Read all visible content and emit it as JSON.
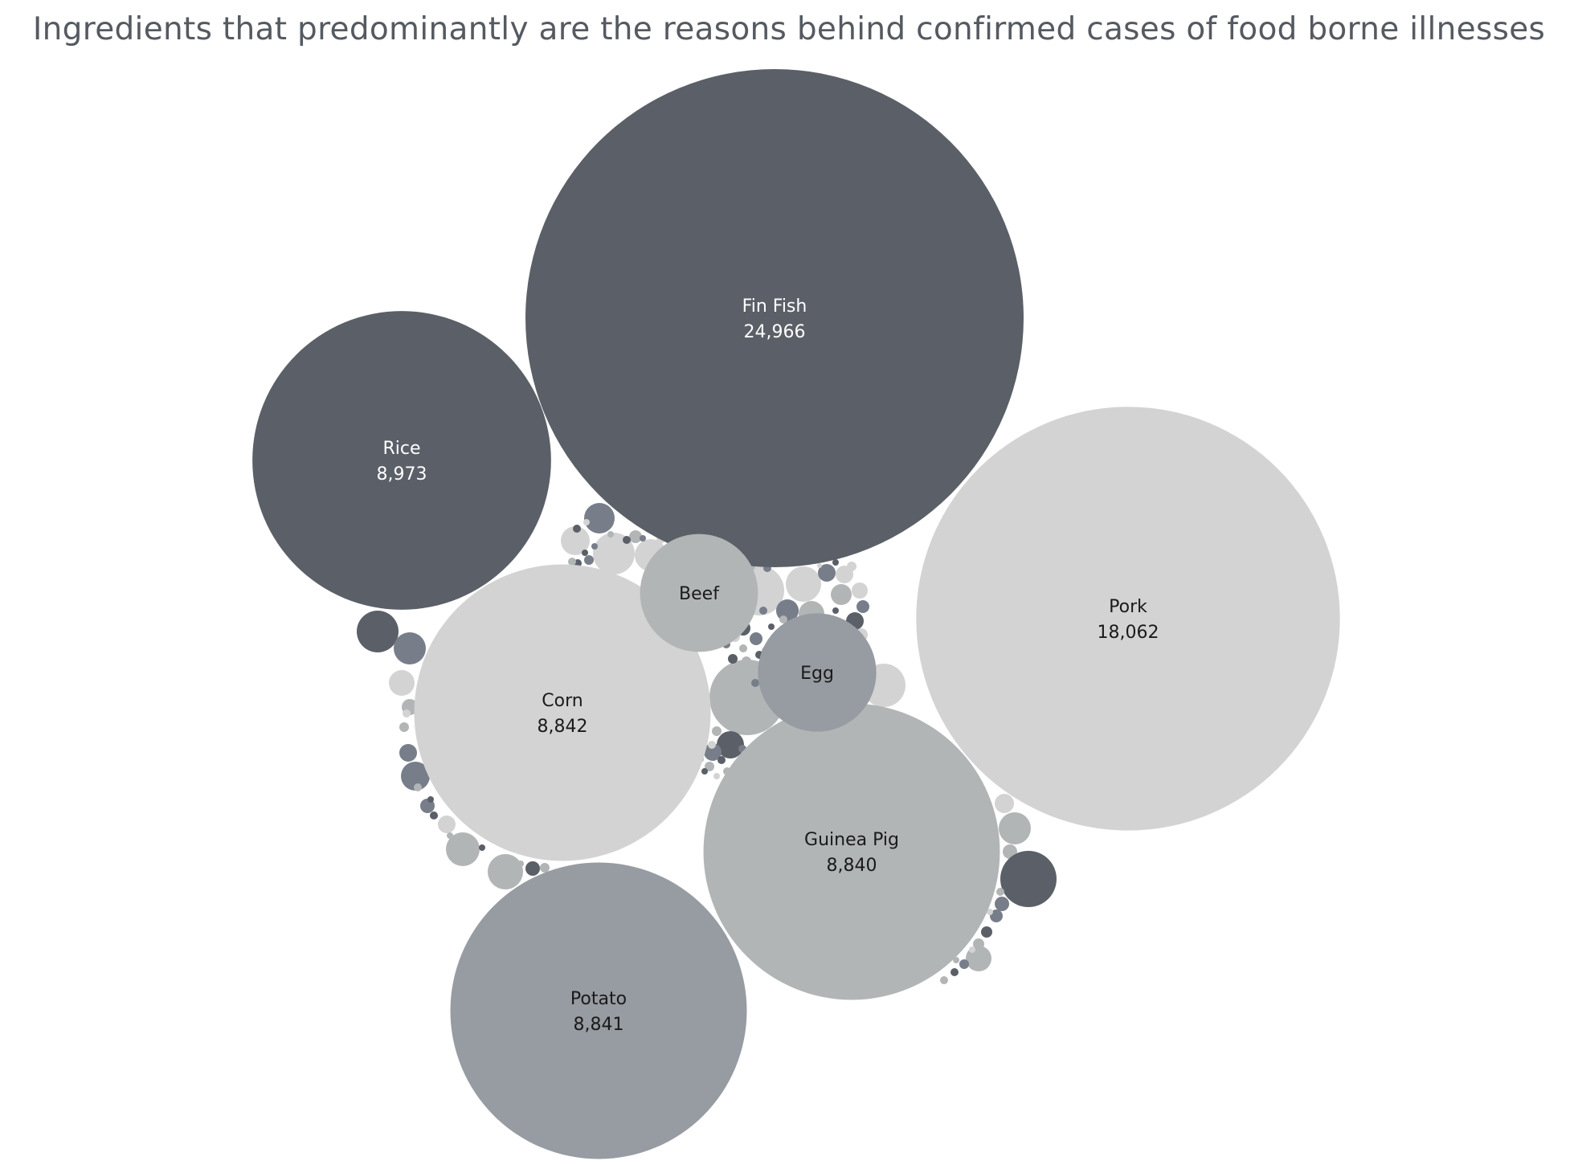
{
  "chart_data": {
    "type": "bubble",
    "title": "Ingredients that predominantly are the reasons behind confirmed cases of food borne illnesses",
    "measure_format": "comma-separated integer",
    "palette": [
      "#5b5f67",
      "#777d89",
      "#979ba2",
      "#b2b5b6",
      "#d3d3d3"
    ],
    "bubbles": [
      {
        "label": "Fin Fish",
        "value": 24966,
        "value_text": "24,966",
        "color": "#5b5f67",
        "text_color": "#ffffff"
      },
      {
        "label": "Pork",
        "value": 18062,
        "value_text": "18,062",
        "color": "#d3d3d3",
        "text_color": "#1a1a1a"
      },
      {
        "label": "Rice",
        "value": 8973,
        "value_text": "8,973",
        "color": "#5b5f67",
        "text_color": "#ffffff"
      },
      {
        "label": "Corn",
        "value": 8842,
        "value_text": "8,842",
        "color": "#d3d3d3",
        "text_color": "#1a1a1a"
      },
      {
        "label": "Potato",
        "value": 8841,
        "value_text": "8,841",
        "color": "#979ba2",
        "text_color": "#1a1a1a"
      },
      {
        "label": "Guinea Pig",
        "value": 8840,
        "value_text": "8,840",
        "color": "#b2b5b6",
        "text_color": "#1a1a1a"
      },
      {
        "label": "Beef",
        "value": 1400,
        "value_text": "",
        "color": "#b2b5b6",
        "text_color": "#1a1a1a"
      },
      {
        "label": "Egg",
        "value": 1410,
        "value_text": "",
        "color": "#979ba2",
        "text_color": "#1a1a1a"
      }
    ]
  }
}
